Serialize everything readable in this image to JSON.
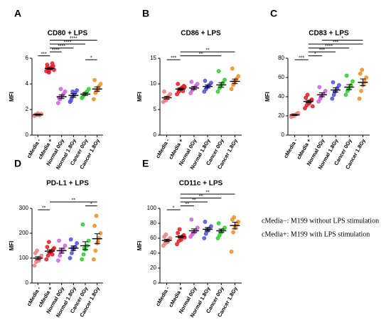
{
  "chart_data": [
    {
      "type": "scatter",
      "panel": "A",
      "title": "CD80 + LPS",
      "ylabel": "MFI",
      "categories": [
        "cMedia -",
        "cMedia +",
        "Normal 0Gy",
        "Normal 1.8Gy",
        "Cancer 0Gy",
        "Cancer 1.8Gy"
      ],
      "colors": [
        "#f08080",
        "#e8202a",
        "#cc66dd",
        "#5555dd",
        "#33cc33",
        "#f0902a"
      ],
      "points": [
        [
          1.5,
          1.6,
          1.7,
          1.55,
          1.65,
          1.6,
          1.58
        ],
        [
          5.0,
          5.1,
          5.2,
          5.3,
          5.4,
          5.5,
          4.9,
          5.2,
          5.6,
          5.1,
          5.3,
          5.0
        ],
        [
          2.5,
          2.8,
          3.0,
          3.2,
          3.4,
          2.9,
          3.6
        ],
        [
          2.6,
          2.9,
          3.1,
          3.3,
          3.5,
          2.7,
          3.4
        ],
        [
          2.9,
          3.1,
          3.3,
          3.4,
          3.6,
          3.0,
          3.2
        ],
        [
          2.8,
          3.3,
          3.5,
          3.8,
          4.0,
          4.3,
          3.4,
          3.6
        ]
      ],
      "means": [
        1.6,
        5.2,
        3.0,
        3.1,
        3.2,
        3.6
      ],
      "errors": [
        0.05,
        0.06,
        0.15,
        0.15,
        0.1,
        0.17
      ],
      "ylim": [
        0,
        6
      ],
      "yticks": [
        0,
        2,
        4,
        6
      ],
      "brackets": [
        {
          "from": 4,
          "to": 5,
          "label": "*"
        },
        {
          "from": 0,
          "to": 1,
          "label": "***"
        },
        {
          "from": 1,
          "to": 2,
          "label": "****"
        },
        {
          "from": 1,
          "to": 3,
          "label": "****"
        },
        {
          "from": 1,
          "to": 4,
          "label": "****"
        },
        {
          "from": 1,
          "to": 5,
          "label": "****"
        }
      ]
    },
    {
      "type": "scatter",
      "panel": "B",
      "title": "CD86 + LPS",
      "ylabel": "MFI",
      "categories": [
        "cMedia -",
        "cMedia +",
        "Normal 0Gy",
        "Normal 1.8Gy",
        "Cancer 0Gy",
        "Cancer 1.8Gy"
      ],
      "colors": [
        "#f08080",
        "#e8202a",
        "#cc66dd",
        "#5555dd",
        "#33cc33",
        "#f0902a"
      ],
      "points": [
        [
          6.5,
          7.0,
          7.3,
          7.6,
          8.0,
          8.5,
          6.8,
          7.2
        ],
        [
          8.0,
          8.5,
          9.0,
          9.3,
          9.6,
          10.0,
          8.8,
          9.1,
          8.6,
          9.4
        ],
        [
          8.2,
          8.8,
          9.2,
          9.6,
          10.0,
          10.4,
          9.0
        ],
        [
          8.5,
          9.0,
          9.5,
          9.8,
          10.2,
          10.6,
          9.3
        ],
        [
          8.5,
          9.2,
          9.8,
          10.2,
          10.8,
          12.5,
          9.5
        ],
        [
          9.0,
          9.8,
          10.5,
          11.0,
          11.5,
          13.0,
          10.2,
          10.6
        ]
      ],
      "means": [
        7.3,
        9.0,
        9.2,
        9.5,
        9.8,
        10.5
      ],
      "errors": [
        0.25,
        0.2,
        0.3,
        0.3,
        0.45,
        0.45
      ],
      "ylim": [
        0,
        15
      ],
      "yticks": [
        0,
        5,
        10,
        15
      ],
      "brackets": [
        {
          "from": 0,
          "to": 1,
          "label": "***"
        },
        {
          "from": 1,
          "to": 4,
          "label": "**"
        },
        {
          "from": 1,
          "to": 5,
          "label": "**"
        }
      ]
    },
    {
      "type": "scatter",
      "panel": "C",
      "title": "CD83 + LPS",
      "ylabel": "MFI",
      "categories": [
        "cMedia -",
        "cMedia +",
        "Normal 0Gy",
        "Normal 1.8Gy",
        "Cancer 0Gy",
        "Cancer 1.8Gy"
      ],
      "colors": [
        "#f08080",
        "#e8202a",
        "#cc66dd",
        "#5555dd",
        "#33cc33",
        "#f0902a"
      ],
      "points": [
        [
          19,
          20,
          21,
          22,
          23,
          21,
          20
        ],
        [
          28,
          31,
          34,
          35,
          37,
          39,
          42,
          33,
          36,
          30
        ],
        [
          35,
          38,
          41,
          43,
          46,
          50,
          40
        ],
        [
          38,
          42,
          46,
          49,
          52,
          55,
          45
        ],
        [
          42,
          46,
          49,
          52,
          56,
          62,
          48
        ],
        [
          38,
          46,
          52,
          56,
          60,
          64,
          68,
          54
        ]
      ],
      "means": [
        21,
        35,
        42,
        47,
        50,
        55
      ],
      "errors": [
        0.6,
        1.3,
        2.0,
        2.3,
        2.6,
        3.5
      ],
      "ylim": [
        0,
        80
      ],
      "yticks": [
        0,
        20,
        40,
        60,
        80
      ],
      "brackets": [
        {
          "from": 0,
          "to": 1,
          "label": "***"
        },
        {
          "from": 1,
          "to": 2,
          "label": "*"
        },
        {
          "from": 1,
          "to": 3,
          "label": "***"
        },
        {
          "from": 1,
          "to": 4,
          "label": "****"
        },
        {
          "from": 1,
          "to": 5,
          "label": "***"
        },
        {
          "from": 2,
          "to": 5,
          "label": "*"
        }
      ]
    },
    {
      "type": "scatter",
      "panel": "D",
      "title": "PD-L1 + LPS",
      "ylabel": "MFI",
      "categories": [
        "cMedia -",
        "cMedia +",
        "Normal 0Gy",
        "Normal 1.8Gy",
        "Cancer 0Gy",
        "Cancer 1.8Gy"
      ],
      "colors": [
        "#f08080",
        "#e8202a",
        "#cc66dd",
        "#5555dd",
        "#33cc33",
        "#f0902a"
      ],
      "points": [
        [
          70,
          85,
          95,
          100,
          110,
          120,
          130,
          90
        ],
        [
          95,
          110,
          120,
          128,
          135,
          145,
          165,
          125,
          115,
          140
        ],
        [
          90,
          110,
          125,
          135,
          150,
          170,
          130
        ],
        [
          100,
          120,
          135,
          145,
          160,
          175,
          140
        ],
        [
          95,
          115,
          135,
          150,
          170,
          235,
          140
        ],
        [
          95,
          130,
          160,
          180,
          200,
          230,
          270,
          165
        ]
      ],
      "means": [
        100,
        128,
        130,
        140,
        150,
        178
      ],
      "errors": [
        6,
        6,
        10,
        9,
        16,
        20
      ],
      "ylim": [
        0,
        300
      ],
      "yticks": [
        0,
        100,
        200,
        300
      ],
      "brackets": [
        {
          "from": 0,
          "to": 1,
          "label": "**"
        },
        {
          "from": 4,
          "to": 5,
          "label": "*"
        },
        {
          "from": 1,
          "to": 5,
          "label": "**"
        }
      ]
    },
    {
      "type": "scatter",
      "panel": "E",
      "title": "CD11c + LPS",
      "ylabel": "MFI",
      "categories": [
        "cMedia -",
        "cMedia +",
        "Normal 0Gy",
        "Normal 1.8Gy",
        "Cancer 0Gy",
        "Cancer 1.8Gy"
      ],
      "colors": [
        "#f08080",
        "#e8202a",
        "#cc66dd",
        "#5555dd",
        "#33cc33",
        "#f0902a"
      ],
      "points": [
        [
          50,
          53,
          56,
          58,
          60,
          62,
          65,
          55
        ],
        [
          52,
          56,
          60,
          62,
          64,
          67,
          72,
          58,
          63,
          61
        ],
        [
          62,
          65,
          68,
          70,
          74,
          85,
          67
        ],
        [
          60,
          66,
          70,
          73,
          76,
          82,
          71
        ],
        [
          60,
          64,
          68,
          71,
          74,
          80,
          69
        ],
        [
          42,
          68,
          74,
          78,
          82,
          85,
          88,
          76
        ]
      ],
      "means": [
        57,
        62,
        70,
        72,
        70,
        77
      ],
      "errors": [
        1.5,
        1.2,
        2.5,
        2.4,
        2.3,
        4.5
      ],
      "ylim": [
        0,
        100
      ],
      "yticks": [
        0,
        20,
        40,
        60,
        80,
        100
      ],
      "brackets": [
        {
          "from": 0,
          "to": 1,
          "label": "*"
        },
        {
          "from": 1,
          "to": 2,
          "label": "**"
        },
        {
          "from": 1,
          "to": 3,
          "label": "**"
        },
        {
          "from": 1,
          "to": 4,
          "label": "**"
        },
        {
          "from": 1,
          "to": 5,
          "label": "**"
        }
      ]
    }
  ],
  "notes": [
    "cMedia−: M199 without LPS stimulation",
    "cMedia+: M199 with LPS stimulation"
  ]
}
